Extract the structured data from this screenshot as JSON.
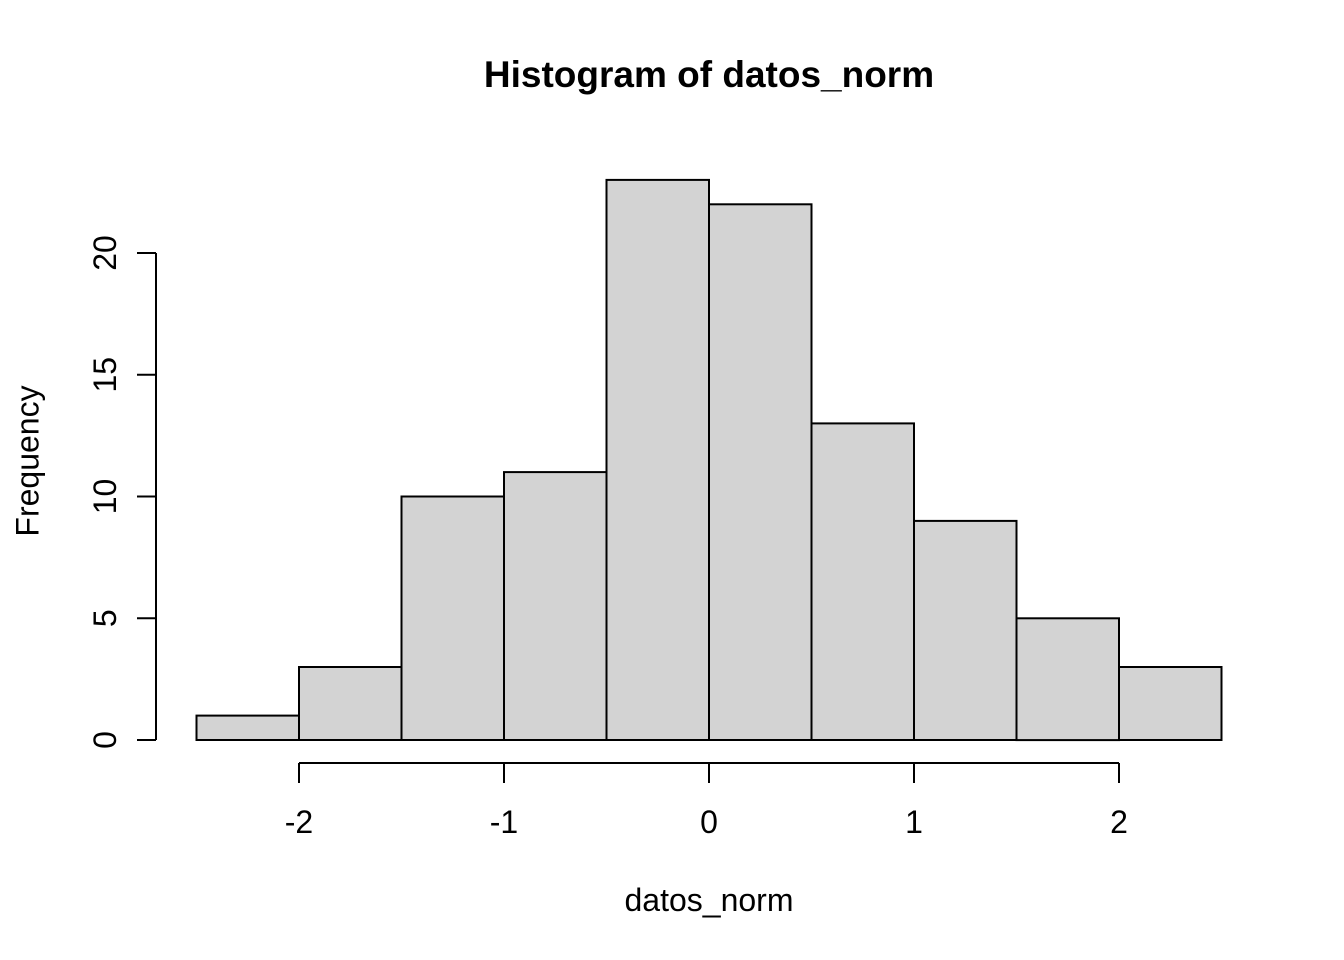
{
  "chart_data": {
    "type": "bar",
    "subtype": "histogram",
    "title": "Histogram of datos_norm",
    "xlabel": "datos_norm",
    "ylabel": "Frequency",
    "bin_edges": [
      -2.5,
      -2.0,
      -1.5,
      -1.0,
      -0.5,
      0.0,
      0.5,
      1.0,
      1.5,
      2.0,
      2.5
    ],
    "counts": [
      1,
      3,
      10,
      11,
      23,
      22,
      13,
      9,
      5,
      3
    ],
    "x_ticks": [
      "-2",
      "-1",
      "0",
      "1",
      "2"
    ],
    "x_tick_values": [
      -2,
      -1,
      0,
      1,
      2
    ],
    "y_ticks": [
      "0",
      "5",
      "10",
      "15",
      "20"
    ],
    "y_tick_values": [
      0,
      5,
      10,
      15,
      20
    ],
    "xlim": [
      -2.5,
      2.5
    ],
    "ylim": [
      0,
      23
    ],
    "grid": false,
    "legend": false,
    "bar_fill": "#d3d3d3",
    "bar_stroke": "#000000",
    "axis_color": "#000000",
    "text_color": "#000000",
    "background": "#ffffff"
  }
}
